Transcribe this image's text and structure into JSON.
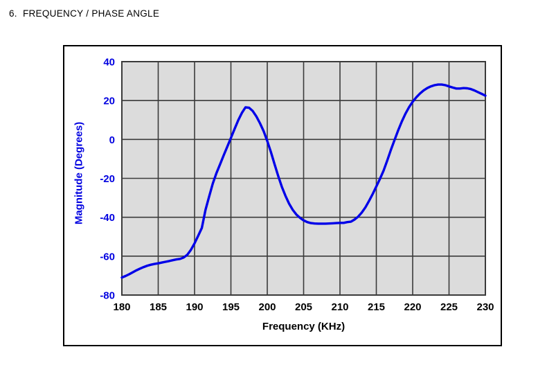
{
  "page": {
    "title": "6.  FREQUENCY / PHASE ANGLE"
  },
  "chart_data": {
    "type": "line",
    "title": "",
    "xlabel": "Frequency (KHz)",
    "ylabel": "Magnitude (Degrees)",
    "xlim": [
      180,
      230
    ],
    "ylim": [
      -80,
      40
    ],
    "x_ticks": [
      180,
      185,
      190,
      195,
      200,
      205,
      210,
      215,
      220,
      225,
      230
    ],
    "y_ticks": [
      40,
      20,
      0,
      -20,
      -40,
      -60,
      -80
    ],
    "grid": true,
    "legend_position": "none",
    "colors": {
      "curve": "#0000e8",
      "y_axis_text": "#0000e0",
      "x_axis_text": "#000000",
      "plot_bg": "#dcdcdc",
      "grid_line": "#3a3a3a",
      "frame_border": "#000000"
    },
    "series": [
      {
        "name": "Phase Angle",
        "x": [
          180,
          180.5,
          181,
          181.5,
          182,
          182.5,
          183,
          183.5,
          184,
          184.5,
          185,
          185.5,
          186,
          186.5,
          187,
          187.5,
          188,
          188.5,
          189,
          189.5,
          190,
          190.5,
          191,
          191.5,
          192,
          192.5,
          193,
          193.5,
          194,
          194.5,
          195,
          195.5,
          196,
          196.5,
          197,
          197.5,
          198,
          198.5,
          199,
          199.5,
          200,
          200.5,
          201,
          201.5,
          202,
          202.5,
          203,
          203.5,
          204,
          204.5,
          205,
          205.5,
          206,
          206.5,
          207,
          207.5,
          208,
          208.5,
          209,
          209.5,
          210,
          210.5,
          211,
          211.5,
          212,
          212.5,
          213,
          213.5,
          214,
          214.5,
          215,
          215.5,
          216,
          216.5,
          217,
          217.5,
          218,
          218.5,
          219,
          219.5,
          220,
          220.5,
          221,
          221.5,
          222,
          222.5,
          223,
          223.5,
          224,
          224.5,
          225,
          225.5,
          226,
          226.5,
          227,
          227.5,
          228,
          228.5,
          229,
          229.5,
          230
        ],
        "y": [
          -71.0,
          -70.2,
          -69.3,
          -68.3,
          -67.3,
          -66.4,
          -65.6,
          -64.9,
          -64.4,
          -64.0,
          -63.7,
          -63.3,
          -62.9,
          -62.5,
          -62.1,
          -61.7,
          -61.4,
          -60.7,
          -59.3,
          -56.7,
          -53.4,
          -49.5,
          -45.5,
          -36.2,
          -29.4,
          -22.7,
          -17.4,
          -12.8,
          -8.2,
          -3.7,
          0.8,
          5.4,
          9.8,
          13.6,
          16.5,
          16.3,
          14.6,
          11.8,
          8.3,
          4.2,
          -0.8,
          -6.5,
          -12.7,
          -18.8,
          -24.3,
          -29.0,
          -33.0,
          -36.2,
          -38.6,
          -40.3,
          -41.6,
          -42.5,
          -43.0,
          -43.2,
          -43.3,
          -43.3,
          -43.3,
          -43.2,
          -43.1,
          -43.0,
          -42.9,
          -42.9,
          -42.5,
          -42.3,
          -41.2,
          -39.7,
          -37.6,
          -34.9,
          -31.6,
          -28.0,
          -24.2,
          -20.2,
          -16.0,
          -10.8,
          -5.4,
          -0.3,
          4.6,
          9.2,
          13.2,
          16.6,
          19.4,
          21.7,
          23.6,
          25.2,
          26.4,
          27.3,
          27.9,
          28.2,
          28.2,
          27.9,
          27.3,
          26.7,
          26.2,
          26.2,
          26.4,
          26.3,
          25.9,
          25.2,
          24.3,
          23.4,
          22.5
        ]
      }
    ]
  }
}
